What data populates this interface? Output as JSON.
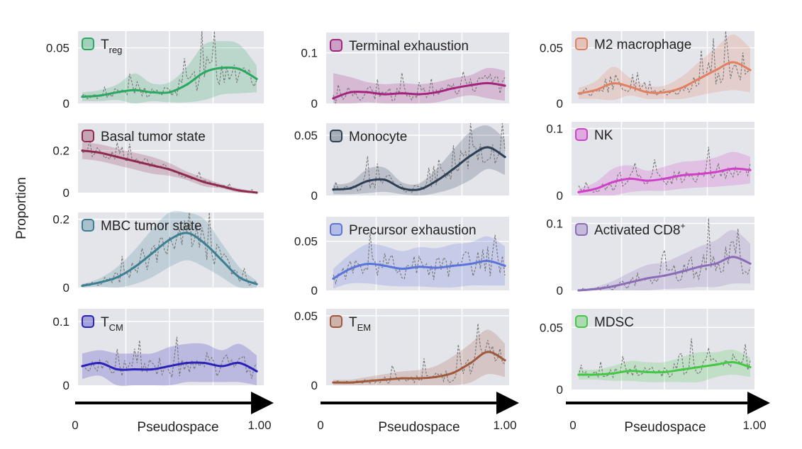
{
  "figure": {
    "ylabel": "Proportion",
    "xlabel": "Pseudospace",
    "x_tick_start": "0",
    "x_tick_end": "1.00",
    "panel_background": "#e4e5eb",
    "raw_line_color": "#7a7a7a"
  },
  "chart_data": [
    {
      "type": "line",
      "label": "T",
      "sub": "reg",
      "sup": "",
      "color": "#2aa85f",
      "ylim": [
        0,
        0.065
      ],
      "ticks": [
        {
          "v": 0,
          "t": "0"
        },
        {
          "v": 0.05,
          "t": "0.05"
        }
      ],
      "x": [
        0,
        0.1,
        0.2,
        0.3,
        0.4,
        0.5,
        0.6,
        0.7,
        0.8,
        0.9,
        1
      ],
      "smooth": [
        0.006,
        0.007,
        0.01,
        0.012,
        0.01,
        0.01,
        0.017,
        0.028,
        0.032,
        0.031,
        0.022
      ],
      "band": [
        0.004,
        0.005,
        0.007,
        0.015,
        0.008,
        0.009,
        0.016,
        0.025,
        0.024,
        0.022,
        0.012
      ]
    },
    {
      "type": "line",
      "label": "Terminal exhaustion",
      "sub": "",
      "sup": "",
      "color": "#a3237f",
      "ylim": [
        0,
        0.14
      ],
      "ticks": [
        {
          "v": 0,
          "t": "0"
        },
        {
          "v": 0.1,
          "t": "0.1"
        }
      ],
      "x": [
        0,
        0.1,
        0.2,
        0.3,
        0.4,
        0.5,
        0.6,
        0.7,
        0.8,
        0.9,
        1
      ],
      "smooth": [
        0.01,
        0.022,
        0.022,
        0.018,
        0.02,
        0.018,
        0.022,
        0.03,
        0.036,
        0.04,
        0.035
      ],
      "band": [
        0.05,
        0.03,
        0.02,
        0.02,
        0.02,
        0.02,
        0.02,
        0.02,
        0.02,
        0.03,
        0.03
      ]
    },
    {
      "type": "line",
      "label": "M2 macrophage",
      "sub": "",
      "sup": "",
      "color": "#e08060",
      "ylim": [
        0,
        0.065
      ],
      "ticks": [
        {
          "v": 0,
          "t": "0"
        },
        {
          "v": 0.05,
          "t": "0.05"
        }
      ],
      "x": [
        0,
        0.1,
        0.2,
        0.3,
        0.4,
        0.5,
        0.6,
        0.7,
        0.8,
        0.9,
        1
      ],
      "smooth": [
        0.009,
        0.012,
        0.018,
        0.015,
        0.01,
        0.01,
        0.014,
        0.022,
        0.03,
        0.037,
        0.03
      ],
      "band": [
        0.005,
        0.008,
        0.015,
        0.008,
        0.006,
        0.006,
        0.01,
        0.015,
        0.02,
        0.025,
        0.02
      ]
    },
    {
      "type": "line",
      "label": "Basal tumor state",
      "sub": "",
      "sup": "",
      "color": "#8e2a4e",
      "ylim": [
        0,
        0.33
      ],
      "ticks": [
        {
          "v": 0,
          "t": "0"
        },
        {
          "v": 0.2,
          "t": "0.2"
        }
      ],
      "x": [
        0,
        0.1,
        0.2,
        0.3,
        0.4,
        0.5,
        0.6,
        0.7,
        0.8,
        0.9,
        1
      ],
      "smooth": [
        0.2,
        0.19,
        0.17,
        0.15,
        0.13,
        0.11,
        0.08,
        0.05,
        0.03,
        0.01,
        0.0
      ],
      "band": [
        0.04,
        0.04,
        0.04,
        0.04,
        0.04,
        0.03,
        0.02,
        0.02,
        0.01,
        0.01,
        0.005
      ]
    },
    {
      "type": "line",
      "label": "Monocyte",
      "sub": "",
      "sup": "",
      "color": "#2d3e55",
      "ylim": [
        0,
        0.06
      ],
      "ticks": [
        {
          "v": 0,
          "t": "0"
        },
        {
          "v": 0.05,
          "t": "0.05"
        }
      ],
      "x": [
        0,
        0.1,
        0.2,
        0.3,
        0.4,
        0.5,
        0.6,
        0.7,
        0.8,
        0.9,
        1
      ],
      "smooth": [
        0.005,
        0.006,
        0.012,
        0.013,
        0.006,
        0.005,
        0.012,
        0.022,
        0.033,
        0.04,
        0.032
      ],
      "band": [
        0.004,
        0.005,
        0.01,
        0.01,
        0.005,
        0.005,
        0.01,
        0.016,
        0.02,
        0.018,
        0.015
      ]
    },
    {
      "type": "line",
      "label": "NK",
      "sub": "",
      "sup": "",
      "color": "#d040c8",
      "ylim": [
        0,
        0.11
      ],
      "ticks": [
        {
          "v": 0,
          "t": "0"
        },
        {
          "v": 0.1,
          "t": "0.1"
        }
      ],
      "x": [
        0,
        0.1,
        0.2,
        0.3,
        0.4,
        0.5,
        0.6,
        0.7,
        0.8,
        0.9,
        1
      ],
      "smooth": [
        0.005,
        0.01,
        0.02,
        0.025,
        0.022,
        0.025,
        0.03,
        0.032,
        0.035,
        0.04,
        0.038
      ],
      "band": [
        0.005,
        0.01,
        0.02,
        0.02,
        0.015,
        0.018,
        0.02,
        0.02,
        0.022,
        0.025,
        0.02
      ]
    },
    {
      "type": "line",
      "label": "MBC tumor state",
      "sub": "",
      "sup": "",
      "color": "#3d7f92",
      "ylim": [
        0,
        0.22
      ],
      "ticks": [
        {
          "v": 0,
          "t": "0"
        },
        {
          "v": 0.2,
          "t": "0.2"
        }
      ],
      "x": [
        0,
        0.1,
        0.2,
        0.3,
        0.4,
        0.5,
        0.6,
        0.7,
        0.8,
        0.9,
        1
      ],
      "smooth": [
        0.005,
        0.015,
        0.03,
        0.06,
        0.1,
        0.14,
        0.16,
        0.13,
        0.08,
        0.03,
        0.01
      ],
      "band": [
        0.005,
        0.012,
        0.03,
        0.05,
        0.07,
        0.08,
        0.08,
        0.07,
        0.05,
        0.03,
        0.01
      ]
    },
    {
      "type": "line",
      "label": "Precursor exhaustion",
      "sub": "",
      "sup": "",
      "color": "#5a74dc",
      "ylim": [
        0,
        0.075
      ],
      "ticks": [
        {
          "v": 0,
          "t": "0"
        },
        {
          "v": 0.05,
          "t": "0.05"
        }
      ],
      "x": [
        0,
        0.1,
        0.2,
        0.3,
        0.4,
        0.5,
        0.6,
        0.7,
        0.8,
        0.9,
        1
      ],
      "smooth": [
        0.012,
        0.022,
        0.027,
        0.025,
        0.022,
        0.024,
        0.023,
        0.025,
        0.027,
        0.03,
        0.025
      ],
      "band": [
        0.01,
        0.015,
        0.02,
        0.02,
        0.018,
        0.02,
        0.02,
        0.022,
        0.022,
        0.025,
        0.02
      ]
    },
    {
      "type": "line",
      "label": "Activated CD8",
      "sub": "",
      "sup": "+",
      "color": "#8a6cb8",
      "ylim": [
        0,
        0.11
      ],
      "ticks": [
        {
          "v": 0,
          "t": "0"
        },
        {
          "v": 0.1,
          "t": "0.1"
        }
      ],
      "x": [
        0,
        0.1,
        0.2,
        0.3,
        0.4,
        0.5,
        0.6,
        0.7,
        0.8,
        0.9,
        1
      ],
      "smooth": [
        0.0,
        0.002,
        0.006,
        0.012,
        0.018,
        0.022,
        0.028,
        0.035,
        0.04,
        0.05,
        0.04
      ],
      "band": [
        0.001,
        0.003,
        0.008,
        0.015,
        0.02,
        0.02,
        0.025,
        0.03,
        0.035,
        0.04,
        0.03
      ]
    },
    {
      "type": "line",
      "label": "T",
      "sub": "CM",
      "sup": "",
      "color": "#2a22b8",
      "ylim": [
        0,
        0.12
      ],
      "ticks": [
        {
          "v": 0,
          "t": "0"
        },
        {
          "v": 0.1,
          "t": "0.1"
        }
      ],
      "x": [
        0,
        0.1,
        0.2,
        0.3,
        0.4,
        0.5,
        0.6,
        0.7,
        0.8,
        0.9,
        1
      ],
      "smooth": [
        0.03,
        0.035,
        0.025,
        0.025,
        0.025,
        0.03,
        0.035,
        0.035,
        0.03,
        0.035,
        0.022
      ],
      "band": [
        0.02,
        0.02,
        0.025,
        0.025,
        0.025,
        0.03,
        0.03,
        0.03,
        0.025,
        0.03,
        0.025
      ]
    },
    {
      "type": "line",
      "label": "T",
      "sub": "EM",
      "sup": "",
      "color": "#a0583a",
      "ylim": [
        0,
        0.055
      ],
      "ticks": [
        {
          "v": 0,
          "t": "0"
        },
        {
          "v": 0.05,
          "t": "0.05"
        }
      ],
      "x": [
        0,
        0.1,
        0.2,
        0.3,
        0.4,
        0.5,
        0.6,
        0.7,
        0.8,
        0.9,
        1
      ],
      "smooth": [
        0.002,
        0.002,
        0.003,
        0.004,
        0.005,
        0.005,
        0.006,
        0.009,
        0.016,
        0.024,
        0.018
      ],
      "band": [
        0.002,
        0.002,
        0.003,
        0.004,
        0.005,
        0.006,
        0.008,
        0.012,
        0.014,
        0.016,
        0.012
      ]
    },
    {
      "type": "line",
      "label": "MDSC",
      "sub": "",
      "sup": "",
      "color": "#44c844",
      "ylim": [
        0,
        0.065
      ],
      "ticks": [
        {
          "v": 0,
          "t": "0"
        },
        {
          "v": 0.05,
          "t": "0.05"
        }
      ],
      "x": [
        0,
        0.1,
        0.2,
        0.3,
        0.4,
        0.5,
        0.6,
        0.7,
        0.8,
        0.9,
        1
      ],
      "smooth": [
        0.012,
        0.012,
        0.013,
        0.015,
        0.014,
        0.014,
        0.016,
        0.018,
        0.02,
        0.022,
        0.018
      ],
      "band": [
        0.004,
        0.004,
        0.006,
        0.008,
        0.008,
        0.008,
        0.01,
        0.012,
        0.01,
        0.01,
        0.008
      ]
    }
  ]
}
